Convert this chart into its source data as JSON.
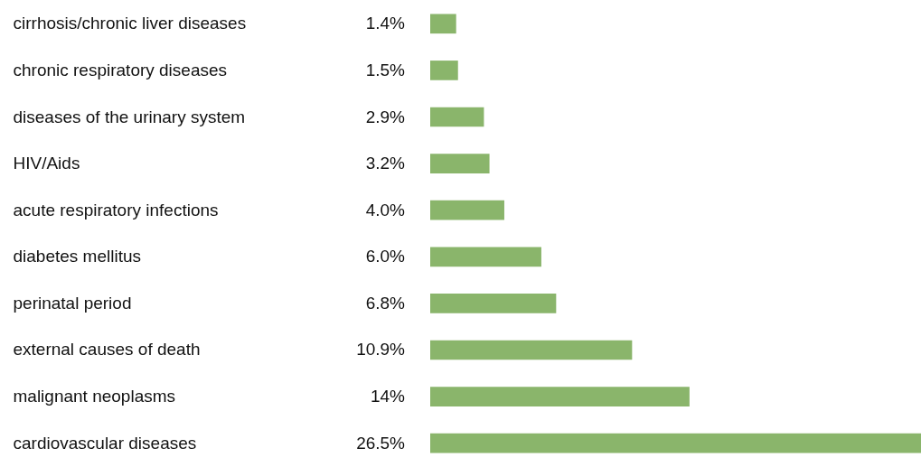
{
  "chart_data": {
    "type": "bar",
    "orientation": "horizontal",
    "categories": [
      "cirrhosis/chronic liver diseases",
      "chronic respiratory diseases",
      "diseases of the urinary system",
      "HIV/Aids",
      "acute respiratory infections",
      "diabetes mellitus",
      "perinatal period",
      "external causes of death",
      "malignant neoplasms",
      "cardiovascular diseases"
    ],
    "values": [
      1.4,
      1.5,
      2.9,
      3.2,
      4.0,
      6.0,
      6.8,
      10.9,
      14,
      26.5
    ],
    "value_labels": [
      "1.4%",
      "1.5%",
      "2.9%",
      "3.2%",
      "4.0%",
      "6.0%",
      "6.8%",
      "10.9%",
      "14%",
      "26.5%"
    ],
    "color": "#8ab56b",
    "grid": false
  }
}
